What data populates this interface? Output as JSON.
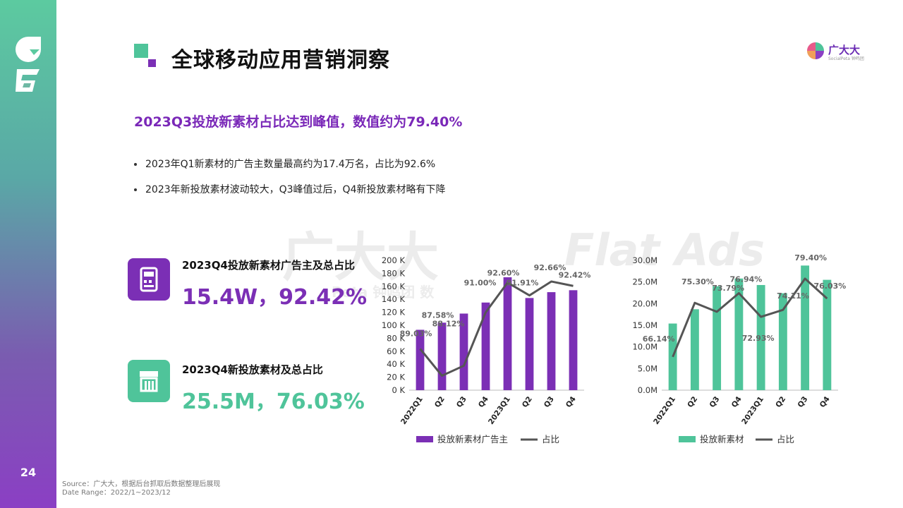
{
  "page": {
    "number": "24",
    "title": "全球移动应用营销洞察"
  },
  "brand": {
    "name": "广大大",
    "sub": "SocialPeta 钟鸣团"
  },
  "headline": "2023Q3投放新素材占比达到峰值，数值约为79.40%",
  "bullets": [
    "2023年Q1新素材的广告主数量最高约为17.4万名，占比为92.6%",
    "2023年新投放素材波动较大，Q3峰值过后，Q4新投放素材略有下降"
  ],
  "stats": [
    {
      "label": "2023Q4投放新素材广告主及总占比",
      "value": "15.4W，92.42%",
      "color": "#7b2fb5",
      "icon": "pos-terminal-icon"
    },
    {
      "label": "2023Q4新投放素材及总占比",
      "value": "25.5M，76.03%",
      "color": "#4fc49a",
      "icon": "store-icon"
    }
  ],
  "watermarks": {
    "brand": "广大大",
    "flat": "Flat Ads",
    "peta": "Peta 钟鸣团 数"
  },
  "source": {
    "line1": "Source：广大大，根据后台抓取后数据整理后展现",
    "line2": "Date Range：2022/1~2023/12"
  },
  "chart_data": [
    {
      "type": "bar",
      "categories": [
        "2022Q1",
        "Q2",
        "Q3",
        "Q4",
        "2023Q1",
        "Q2",
        "Q3",
        "Q4"
      ],
      "series": [
        {
          "name": "投放新素材广告主",
          "kind": "bar",
          "color": "#7b2fb5",
          "values": [
            93000,
            104000,
            118000,
            135000,
            174000,
            142000,
            151000,
            154000
          ]
        },
        {
          "name": "占比",
          "kind": "line",
          "color": "#555555",
          "values": [
            89.03,
            87.58,
            88.12,
            91.0,
            92.6,
            91.91,
            92.66,
            92.42
          ],
          "labels": [
            "89.03%",
            "87.58%",
            "88.12%",
            "91.00%",
            "92.60%",
            "91.91%",
            "92.66%",
            "92.42%"
          ]
        }
      ],
      "ylim": [
        0,
        200000
      ],
      "yticks": [
        "0 K",
        "20 K",
        "40 K",
        "60 K",
        "80 K",
        "100 K",
        "120 K",
        "140 K",
        "160 K",
        "180 K",
        "200 K"
      ],
      "legend": "bottom"
    },
    {
      "type": "bar",
      "categories": [
        "2022Q1",
        "Q2",
        "Q3",
        "Q4",
        "2023Q1",
        "Q2",
        "Q3",
        "Q4"
      ],
      "series": [
        {
          "name": "投放新素材",
          "kind": "bar",
          "color": "#4fc49a",
          "values": [
            15.4,
            18.7,
            24.0,
            25.8,
            24.3,
            22.4,
            28.8,
            25.5
          ]
        },
        {
          "name": "占比",
          "kind": "line",
          "color": "#555555",
          "values": [
            66.14,
            75.3,
            73.79,
            76.94,
            72.93,
            74.11,
            79.4,
            76.03
          ],
          "labels": [
            "66.14%",
            "75.30%",
            "73.79%",
            "76.94%",
            "72.93%",
            "74.11%",
            "79.40%",
            "76.03%"
          ]
        }
      ],
      "ylim": [
        0,
        30
      ],
      "yticks": [
        "0.0M",
        "5.0M",
        "10.0M",
        "15.0M",
        "20.0M",
        "25.0M",
        "30.0M"
      ],
      "legend": "bottom"
    }
  ]
}
